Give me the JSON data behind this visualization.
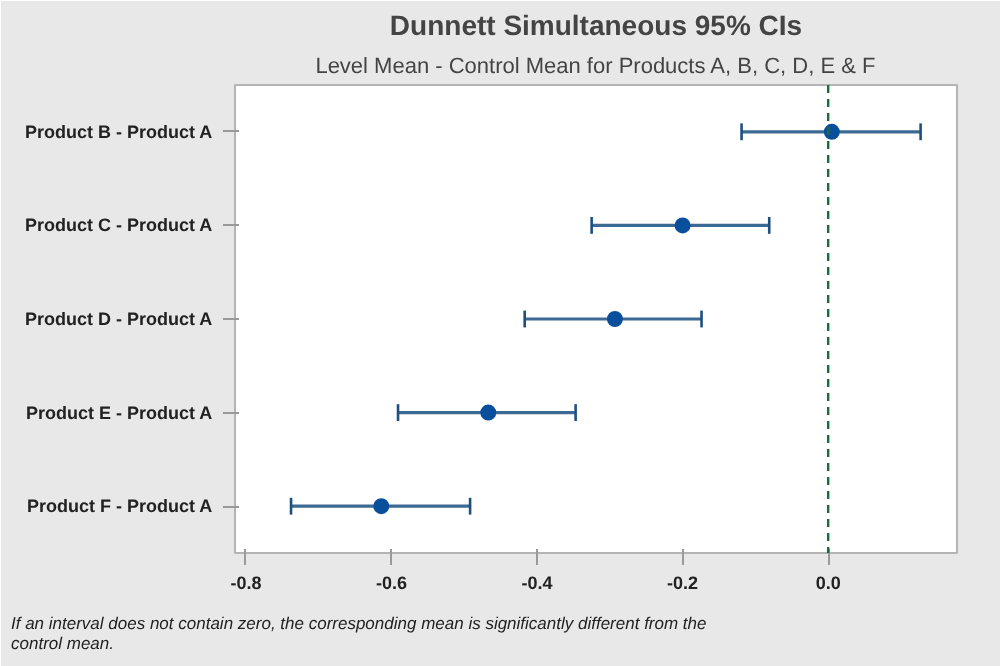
{
  "chart_data": {
    "type": "scatter",
    "orientation": "horizontal",
    "title": "Dunnett Simultaneous 95% CIs",
    "subtitle": "Level Mean - Control Mean for Products A, B, C, D, E & F",
    "categories": [
      "Product B - Product A",
      "Product C - Product A",
      "Product D - Product A",
      "Product E - Product A",
      "Product F - Product A"
    ],
    "series": [
      {
        "color": "#0a4f9c",
        "values": [
          0.005,
          -0.2,
          -0.293,
          -0.467,
          -0.614
        ],
        "errors": [
          [
            -0.119,
            0.127
          ],
          [
            -0.325,
            -0.081
          ],
          [
            -0.417,
            -0.174
          ],
          [
            -0.591,
            -0.347
          ],
          [
            -0.738,
            -0.492
          ]
        ]
      }
    ],
    "xlim": [
      -0.815,
      0.177
    ],
    "xticks": [
      {
        "value": -0.8,
        "label": "-0.8"
      },
      {
        "value": -0.6,
        "label": "-0.6"
      },
      {
        "value": -0.4,
        "label": "-0.4"
      },
      {
        "value": -0.2,
        "label": "-0.2"
      },
      {
        "value": 0,
        "label": "0.0"
      }
    ],
    "ref_lines": [
      {
        "axis": "x",
        "value": 0,
        "color": "#1e6b3a",
        "line_style": "dashed"
      }
    ],
    "annotations": [
      "If an interval does not contain zero, the corresponding mean is significantly different from the control mean."
    ],
    "marker": "circle",
    "grid": false
  }
}
